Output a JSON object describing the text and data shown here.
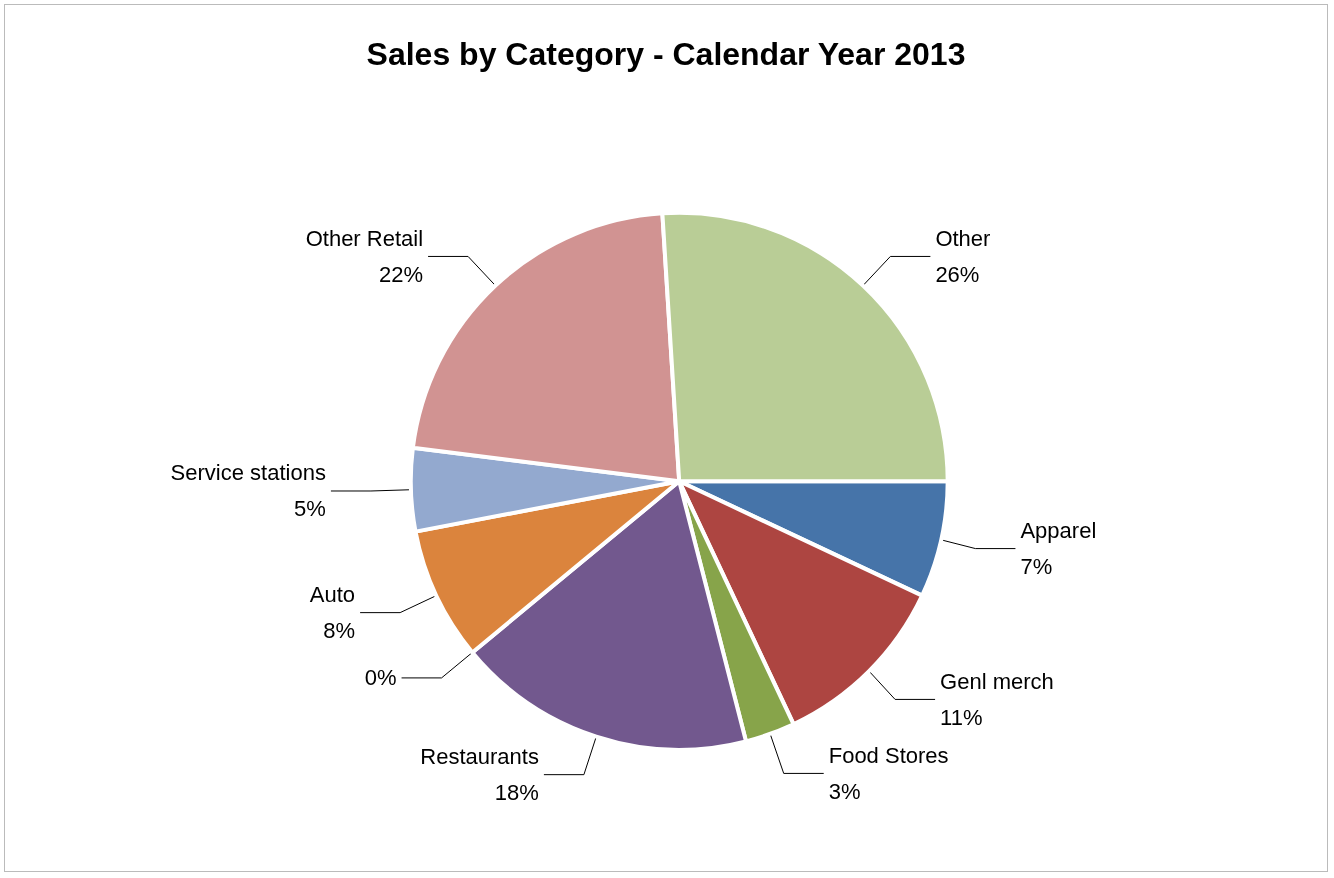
{
  "chart_data": {
    "type": "pie",
    "title": "Sales by Category - Calendar Year 2013",
    "categories": [
      "Apparel",
      "Genl merch",
      "Food Stores",
      "Restaurants",
      null,
      "Auto",
      "Service stations",
      "Other Retail",
      "Other"
    ],
    "values": [
      7,
      11,
      3,
      18,
      0,
      8,
      5,
      22,
      26
    ],
    "colors": [
      "#4674a9",
      "#ad4541",
      "#87a44a",
      "#72588e",
      "#3f9cb5",
      "#db843d",
      "#93a9cf",
      "#d19392",
      "#b9cd96"
    ],
    "value_labels": [
      "7%",
      "11%",
      "3%",
      "18%",
      "0%",
      "8%",
      "5%",
      "22%",
      "26%"
    ],
    "legend": false
  }
}
